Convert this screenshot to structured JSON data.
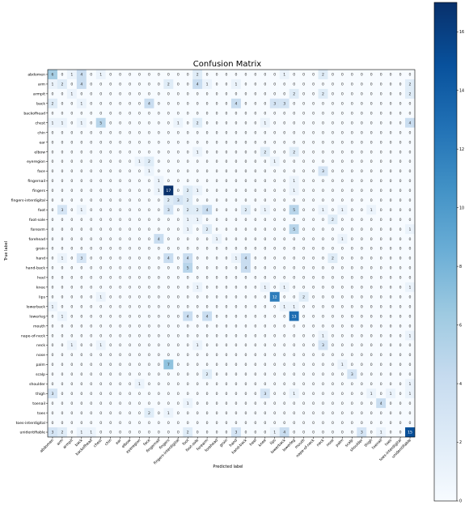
{
  "chart_data": {
    "type": "heatmap",
    "title": "Confusion Matrix",
    "xlabel": "Predicted label",
    "ylabel": "True label",
    "labels": [
      "abdomen",
      "arm",
      "armpit",
      "back",
      "backofhead",
      "chest",
      "chin",
      "ear",
      "elbow",
      "eyeregion",
      "face",
      "fingernail",
      "fingers",
      "fingers-interdigital",
      "foot",
      "foot-sole",
      "forearm",
      "forehead",
      "groin",
      "hand",
      "hand-back",
      "heel",
      "knee",
      "lips",
      "lowerback",
      "lowerleg",
      "mouth",
      "nape-of-neck",
      "neck",
      "nose",
      "palm",
      "scalp",
      "shoulder",
      "thigh",
      "toenail",
      "toes",
      "toes-interdigital",
      "unidentifiable"
    ],
    "matrix": [
      [
        6,
        0,
        1,
        4,
        0,
        1,
        0,
        0,
        0,
        0,
        0,
        0,
        0,
        0,
        0,
        2,
        0,
        0,
        0,
        0,
        0,
        0,
        0,
        0,
        1,
        0,
        0,
        0,
        2,
        0,
        0,
        0,
        0,
        0,
        0,
        0,
        0,
        0
      ],
      [
        1,
        2,
        0,
        4,
        0,
        0,
        0,
        0,
        0,
        0,
        0,
        0,
        2,
        0,
        0,
        4,
        1,
        0,
        0,
        1,
        0,
        0,
        0,
        0,
        0,
        0,
        0,
        0,
        0,
        0,
        0,
        0,
        0,
        0,
        0,
        0,
        0,
        2
      ],
      [
        0,
        0,
        1,
        0,
        0,
        0,
        0,
        0,
        0,
        0,
        0,
        0,
        0,
        0,
        0,
        0,
        0,
        0,
        0,
        0,
        0,
        0,
        0,
        0,
        0,
        2,
        0,
        0,
        2,
        0,
        0,
        0,
        0,
        0,
        0,
        0,
        0,
        2
      ],
      [
        2,
        0,
        0,
        1,
        0,
        0,
        0,
        0,
        0,
        0,
        4,
        0,
        0,
        0,
        0,
        0,
        0,
        0,
        0,
        4,
        0,
        0,
        0,
        3,
        3,
        0,
        0,
        0,
        0,
        0,
        0,
        0,
        0,
        0,
        0,
        0,
        0,
        0
      ],
      [
        0,
        0,
        0,
        0,
        0,
        0,
        0,
        0,
        0,
        0,
        0,
        0,
        0,
        0,
        0,
        0,
        0,
        0,
        0,
        0,
        0,
        0,
        0,
        0,
        0,
        0,
        0,
        0,
        0,
        0,
        0,
        0,
        0,
        0,
        0,
        0,
        0,
        0
      ],
      [
        1,
        1,
        0,
        1,
        0,
        5,
        0,
        0,
        0,
        0,
        0,
        0,
        0,
        1,
        0,
        2,
        0,
        0,
        0,
        0,
        0,
        0,
        1,
        0,
        0,
        0,
        0,
        0,
        0,
        0,
        0,
        0,
        0,
        0,
        0,
        0,
        0,
        4
      ],
      [
        0,
        0,
        0,
        0,
        0,
        0,
        0,
        0,
        0,
        0,
        0,
        0,
        0,
        0,
        0,
        0,
        0,
        0,
        0,
        0,
        0,
        0,
        0,
        0,
        0,
        0,
        0,
        0,
        0,
        0,
        0,
        0,
        0,
        0,
        0,
        0,
        0,
        0
      ],
      [
        0,
        0,
        0,
        0,
        0,
        0,
        0,
        0,
        0,
        0,
        0,
        0,
        0,
        0,
        0,
        0,
        0,
        0,
        0,
        0,
        0,
        0,
        0,
        0,
        0,
        0,
        0,
        0,
        0,
        0,
        0,
        0,
        0,
        0,
        0,
        0,
        0,
        0
      ],
      [
        0,
        0,
        0,
        0,
        0,
        0,
        0,
        0,
        0,
        0,
        0,
        0,
        0,
        0,
        0,
        1,
        0,
        0,
        0,
        0,
        0,
        0,
        2,
        0,
        0,
        2,
        0,
        0,
        0,
        0,
        0,
        0,
        0,
        0,
        0,
        0,
        0,
        0
      ],
      [
        0,
        0,
        0,
        0,
        0,
        0,
        0,
        0,
        0,
        1,
        2,
        0,
        0,
        0,
        0,
        0,
        0,
        0,
        0,
        0,
        0,
        0,
        0,
        1,
        0,
        0,
        0,
        0,
        0,
        0,
        0,
        0,
        0,
        0,
        0,
        0,
        0,
        0
      ],
      [
        0,
        0,
        0,
        0,
        0,
        0,
        0,
        0,
        0,
        0,
        1,
        0,
        0,
        0,
        0,
        0,
        0,
        0,
        0,
        0,
        0,
        0,
        0,
        0,
        0,
        0,
        0,
        0,
        3,
        0,
        0,
        0,
        0,
        0,
        0,
        0,
        0,
        0
      ],
      [
        0,
        0,
        0,
        0,
        0,
        0,
        0,
        0,
        0,
        0,
        0,
        1,
        0,
        0,
        0,
        0,
        0,
        0,
        0,
        0,
        0,
        0,
        0,
        0,
        0,
        1,
        0,
        0,
        0,
        0,
        0,
        0,
        0,
        0,
        0,
        0,
        0,
        0
      ],
      [
        0,
        0,
        0,
        0,
        0,
        0,
        0,
        0,
        0,
        0,
        0,
        1,
        17,
        0,
        2,
        1,
        0,
        0,
        0,
        0,
        0,
        0,
        0,
        0,
        0,
        1,
        0,
        0,
        0,
        0,
        0,
        0,
        0,
        0,
        0,
        0,
        0,
        0
      ],
      [
        0,
        0,
        0,
        0,
        0,
        0,
        0,
        0,
        0,
        0,
        0,
        0,
        2,
        3,
        2,
        0,
        0,
        0,
        0,
        0,
        0,
        0,
        0,
        0,
        0,
        0,
        0,
        0,
        0,
        0,
        0,
        0,
        0,
        0,
        0,
        0,
        0,
        0
      ],
      [
        0,
        3,
        0,
        1,
        0,
        0,
        0,
        0,
        0,
        0,
        0,
        0,
        3,
        0,
        2,
        2,
        4,
        0,
        0,
        0,
        2,
        0,
        1,
        0,
        0,
        5,
        0,
        0,
        1,
        0,
        1,
        0,
        0,
        1,
        0,
        0,
        0,
        0
      ],
      [
        0,
        0,
        0,
        0,
        0,
        0,
        0,
        0,
        0,
        0,
        0,
        0,
        0,
        0,
        1,
        1,
        0,
        0,
        0,
        0,
        0,
        0,
        0,
        0,
        0,
        0,
        0,
        0,
        0,
        2,
        0,
        0,
        0,
        0,
        0,
        0,
        0,
        0
      ],
      [
        0,
        0,
        0,
        0,
        0,
        0,
        0,
        0,
        0,
        0,
        0,
        0,
        0,
        0,
        1,
        0,
        2,
        0,
        0,
        0,
        0,
        0,
        0,
        0,
        0,
        5,
        0,
        0,
        0,
        0,
        0,
        0,
        0,
        0,
        0,
        0,
        0,
        1
      ],
      [
        0,
        0,
        0,
        0,
        0,
        0,
        0,
        0,
        0,
        0,
        0,
        4,
        0,
        0,
        0,
        0,
        0,
        1,
        0,
        0,
        0,
        0,
        0,
        0,
        0,
        0,
        0,
        0,
        0,
        0,
        1,
        0,
        0,
        0,
        0,
        0,
        0,
        0
      ],
      [
        0,
        0,
        0,
        0,
        0,
        0,
        0,
        0,
        0,
        0,
        0,
        0,
        0,
        0,
        0,
        0,
        0,
        0,
        0,
        0,
        0,
        0,
        0,
        0,
        0,
        0,
        0,
        0,
        0,
        0,
        0,
        0,
        0,
        0,
        0,
        0,
        0,
        0
      ],
      [
        0,
        1,
        0,
        3,
        0,
        0,
        0,
        0,
        0,
        0,
        0,
        0,
        4,
        0,
        4,
        0,
        0,
        0,
        0,
        1,
        4,
        0,
        0,
        0,
        0,
        0,
        0,
        0,
        0,
        2,
        0,
        0,
        0,
        0,
        0,
        0,
        0,
        0
      ],
      [
        0,
        0,
        0,
        0,
        0,
        0,
        0,
        0,
        0,
        0,
        0,
        0,
        0,
        0,
        5,
        0,
        0,
        0,
        0,
        0,
        4,
        0,
        0,
        0,
        0,
        0,
        0,
        0,
        0,
        0,
        0,
        0,
        0,
        0,
        0,
        0,
        0,
        0
      ],
      [
        0,
        0,
        0,
        0,
        0,
        0,
        0,
        0,
        0,
        0,
        0,
        0,
        0,
        0,
        0,
        0,
        0,
        0,
        0,
        0,
        0,
        0,
        0,
        0,
        0,
        0,
        0,
        0,
        0,
        0,
        0,
        0,
        0,
        0,
        0,
        0,
        0,
        0
      ],
      [
        0,
        0,
        0,
        0,
        0,
        0,
        0,
        0,
        0,
        0,
        0,
        0,
        0,
        0,
        0,
        1,
        0,
        0,
        0,
        0,
        0,
        0,
        1,
        0,
        1,
        0,
        0,
        0,
        0,
        0,
        0,
        0,
        0,
        0,
        0,
        0,
        0,
        1
      ],
      [
        0,
        0,
        0,
        0,
        0,
        1,
        0,
        0,
        0,
        0,
        0,
        0,
        0,
        0,
        0,
        0,
        0,
        0,
        0,
        0,
        0,
        0,
        0,
        12,
        0,
        0,
        2,
        0,
        0,
        0,
        0,
        0,
        0,
        0,
        0,
        0,
        0,
        0
      ],
      [
        1,
        0,
        0,
        0,
        0,
        0,
        0,
        0,
        0,
        0,
        0,
        0,
        0,
        0,
        0,
        0,
        0,
        0,
        0,
        0,
        0,
        0,
        0,
        0,
        1,
        1,
        0,
        0,
        0,
        0,
        0,
        0,
        0,
        0,
        0,
        0,
        0,
        0
      ],
      [
        0,
        1,
        0,
        0,
        0,
        0,
        0,
        0,
        0,
        0,
        0,
        0,
        0,
        0,
        4,
        0,
        4,
        0,
        0,
        0,
        0,
        0,
        0,
        0,
        0,
        13,
        0,
        0,
        0,
        0,
        0,
        0,
        0,
        0,
        0,
        0,
        0,
        0
      ],
      [
        0,
        0,
        0,
        0,
        0,
        0,
        0,
        0,
        0,
        0,
        0,
        0,
        0,
        0,
        0,
        0,
        0,
        0,
        0,
        0,
        0,
        0,
        0,
        0,
        0,
        0,
        0,
        0,
        0,
        0,
        0,
        0,
        0,
        0,
        0,
        0,
        0,
        0
      ],
      [
        0,
        0,
        0,
        0,
        0,
        0,
        0,
        0,
        0,
        0,
        0,
        0,
        0,
        0,
        0,
        0,
        0,
        0,
        0,
        0,
        0,
        0,
        0,
        0,
        0,
        0,
        0,
        0,
        1,
        0,
        0,
        0,
        0,
        0,
        0,
        0,
        0,
        1
      ],
      [
        0,
        0,
        1,
        0,
        0,
        1,
        0,
        0,
        0,
        0,
        0,
        0,
        0,
        0,
        0,
        1,
        0,
        0,
        0,
        0,
        0,
        0,
        0,
        0,
        0,
        0,
        0,
        0,
        3,
        0,
        0,
        0,
        0,
        0,
        0,
        0,
        0,
        0
      ],
      [
        0,
        0,
        0,
        0,
        0,
        0,
        0,
        0,
        0,
        0,
        0,
        0,
        0,
        0,
        0,
        0,
        0,
        0,
        0,
        0,
        0,
        0,
        0,
        0,
        0,
        0,
        0,
        0,
        0,
        0,
        0,
        0,
        0,
        0,
        0,
        0,
        0,
        0
      ],
      [
        0,
        0,
        0,
        0,
        0,
        0,
        0,
        0,
        0,
        0,
        0,
        0,
        7,
        0,
        0,
        0,
        0,
        0,
        0,
        0,
        0,
        0,
        0,
        0,
        0,
        0,
        0,
        0,
        0,
        0,
        1,
        0,
        0,
        0,
        0,
        0,
        0,
        0
      ],
      [
        0,
        0,
        0,
        0,
        0,
        0,
        0,
        0,
        0,
        0,
        0,
        0,
        0,
        0,
        0,
        0,
        2,
        0,
        0,
        0,
        0,
        0,
        0,
        0,
        0,
        0,
        0,
        0,
        0,
        0,
        0,
        3,
        0,
        0,
        0,
        0,
        0,
        0
      ],
      [
        0,
        0,
        0,
        0,
        0,
        0,
        0,
        0,
        0,
        1,
        0,
        0,
        0,
        0,
        0,
        0,
        0,
        0,
        0,
        0,
        0,
        0,
        0,
        0,
        0,
        0,
        0,
        0,
        0,
        0,
        0,
        0,
        0,
        0,
        0,
        0,
        0,
        1
      ],
      [
        3,
        0,
        0,
        0,
        0,
        0,
        0,
        0,
        0,
        0,
        0,
        0,
        0,
        0,
        0,
        0,
        0,
        0,
        0,
        0,
        0,
        0,
        3,
        0,
        0,
        1,
        0,
        0,
        0,
        0,
        0,
        0,
        0,
        1,
        0,
        1,
        0,
        1
      ],
      [
        0,
        0,
        0,
        0,
        0,
        0,
        0,
        0,
        0,
        0,
        0,
        0,
        0,
        0,
        1,
        0,
        0,
        0,
        0,
        0,
        0,
        0,
        0,
        0,
        0,
        0,
        0,
        0,
        0,
        0,
        0,
        0,
        0,
        0,
        4,
        0,
        0,
        0
      ],
      [
        0,
        0,
        0,
        0,
        0,
        0,
        0,
        0,
        0,
        0,
        2,
        0,
        1,
        0,
        0,
        0,
        0,
        0,
        0,
        0,
        0,
        0,
        0,
        0,
        0,
        0,
        0,
        0,
        0,
        0,
        0,
        0,
        0,
        0,
        0,
        0,
        0,
        0
      ],
      [
        0,
        0,
        0,
        0,
        0,
        0,
        0,
        0,
        0,
        0,
        0,
        0,
        0,
        0,
        0,
        0,
        0,
        0,
        0,
        0,
        0,
        0,
        0,
        0,
        0,
        0,
        0,
        0,
        0,
        0,
        0,
        0,
        0,
        0,
        0,
        0,
        0,
        0
      ],
      [
        3,
        2,
        0,
        1,
        1,
        0,
        0,
        0,
        0,
        0,
        0,
        0,
        0,
        0,
        2,
        0,
        0,
        0,
        0,
        3,
        0,
        0,
        0,
        1,
        4,
        0,
        0,
        0,
        0,
        0,
        0,
        0,
        3,
        0,
        1,
        0,
        0,
        15
      ]
    ],
    "colorbar": {
      "min": 0,
      "max": 17,
      "ticks": [
        0,
        2,
        4,
        6,
        8,
        10,
        12,
        14,
        16
      ],
      "colormap": "Blues"
    },
    "grid": false,
    "legend_placement": "right"
  },
  "colors": {
    "low": "#f7fbff",
    "high": "#08306b",
    "text_dark": "#333333",
    "text_light": "#ffffff"
  }
}
